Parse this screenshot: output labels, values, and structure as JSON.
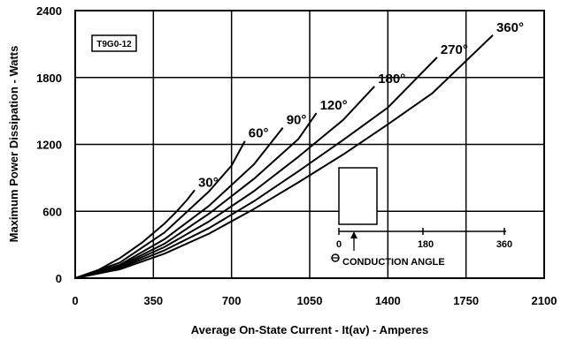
{
  "chart_data": {
    "type": "line",
    "part_number": "T9G0-12",
    "xlabel": "Average On-State Current - It(av) - Amperes",
    "ylabel": "Maximum Power Dissipation - Watts",
    "xlim": [
      0,
      2100
    ],
    "ylim": [
      0,
      2400
    ],
    "xticks": [
      0,
      350,
      700,
      1050,
      1400,
      1750,
      2100
    ],
    "yticks": [
      0,
      600,
      1200,
      1800,
      2400
    ],
    "grid": true,
    "series": [
      {
        "name": "30°",
        "x": [
          0,
          100,
          200,
          300,
          400,
          450,
          500,
          535
        ],
        "y": [
          0,
          70,
          180,
          320,
          490,
          590,
          700,
          790
        ]
      },
      {
        "name": "60°",
        "x": [
          0,
          200,
          400,
          600,
          700,
          760
        ],
        "y": [
          0,
          140,
          410,
          780,
          1010,
          1230
        ]
      },
      {
        "name": "90°",
        "x": [
          0,
          200,
          400,
          600,
          800,
          930
        ],
        "y": [
          0,
          120,
          350,
          650,
          1020,
          1350
        ]
      },
      {
        "name": "120°",
        "x": [
          0,
          200,
          400,
          600,
          800,
          1000,
          1080
        ],
        "y": [
          0,
          110,
          310,
          580,
          890,
          1250,
          1480
        ]
      },
      {
        "name": "180°",
        "x": [
          0,
          200,
          400,
          600,
          800,
          1000,
          1200,
          1340
        ],
        "y": [
          0,
          100,
          280,
          510,
          780,
          1090,
          1420,
          1720
        ]
      },
      {
        "name": "270°",
        "x": [
          0,
          200,
          400,
          600,
          800,
          1000,
          1200,
          1400,
          1620
        ],
        "y": [
          0,
          90,
          250,
          450,
          690,
          960,
          1240,
          1530,
          1980
        ]
      },
      {
        "name": "360°",
        "x": [
          0,
          200,
          400,
          600,
          800,
          1000,
          1200,
          1400,
          1600,
          1870
        ],
        "y": [
          0,
          80,
          220,
          400,
          620,
          860,
          1110,
          1380,
          1660,
          2180
        ]
      }
    ],
    "inset": {
      "caption": "CONDUCTION ANGLE",
      "ticks": [
        "0",
        "180",
        "360"
      ]
    }
  }
}
